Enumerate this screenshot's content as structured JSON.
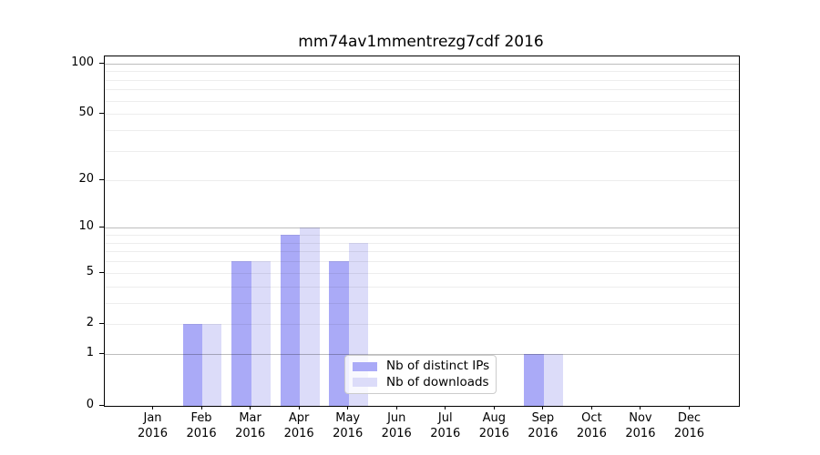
{
  "chart_data": {
    "type": "bar",
    "title": "mm74av1mmentrezg7cdf 2016",
    "year_label": "2016",
    "categories": [
      "Jan",
      "Feb",
      "Mar",
      "Apr",
      "May",
      "Jun",
      "Jul",
      "Aug",
      "Sep",
      "Oct",
      "Nov",
      "Dec"
    ],
    "series": [
      {
        "name": "Nb of distinct IPs",
        "color": "#aaaaf7",
        "values": [
          0,
          2,
          6,
          9,
          6,
          0,
          0,
          0,
          1,
          0,
          0,
          0
        ]
      },
      {
        "name": "Nb of downloads",
        "color": "#dcdcf9",
        "values": [
          0,
          2,
          6,
          10,
          8,
          0,
          0,
          0,
          1,
          0,
          0,
          0
        ]
      }
    ],
    "xlabel": "",
    "ylabel": "",
    "yscale": "log1p",
    "ylim": [
      0,
      110
    ],
    "yticks": [
      0,
      1,
      2,
      5,
      10,
      20,
      50,
      100
    ],
    "grid": {
      "major": [
        1,
        10,
        100
      ],
      "minor": [
        2,
        3,
        4,
        5,
        6,
        7,
        8,
        9,
        20,
        30,
        40,
        50,
        60,
        70,
        80,
        90
      ],
      "major_color": "rgba(0,0,0,0.26)",
      "minor_color": "rgba(0,0,0,0.07)"
    },
    "legend_position": "lower center",
    "background_color": "#ffffff",
    "spine_color": "#000000",
    "text_color": "#000000"
  }
}
